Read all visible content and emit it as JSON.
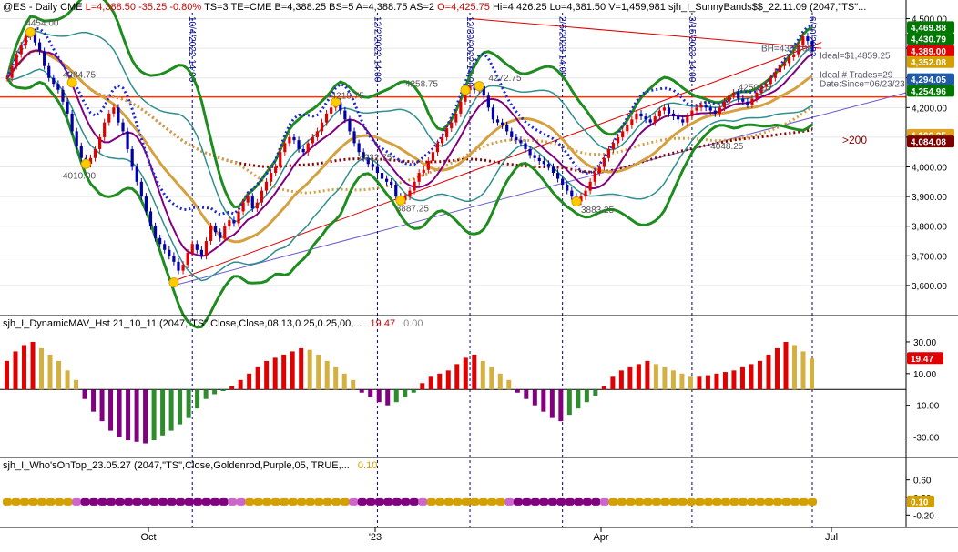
{
  "header": {
    "symbol": "@ES - Daily  CME",
    "last": "L=4,388.50",
    "change": "-35.25",
    "pct": "-0.80%",
    "ts": "TS=3  TE=CME  B=4,388.25  BS=5  A=4,388.75  AS=2",
    "open": "O=4,425.75",
    "hilo": "Hi=4,426.25  Lo=4,381.50  V=1,459,981  sjh_I_SunnyBands$$_22.11.09 (2047,\"TS\"..."
  },
  "indicator1": {
    "label": "sjh_I_DynamicMAV_Hst 21_10_11 (2047,\"TS\",Close,Close,08,13,0.25,0.25,00,...",
    "v1": "19.47",
    "v2": "0.00"
  },
  "indicator2": {
    "label": "sjh_I_Who'sOnTop_23.05.27 (2047,\"TS\",Close,Goldenrod,Purple,05,  TRUE,...",
    "v1": "0.10"
  },
  "colors": {
    "bull": "#e00000",
    "bear": "#0000aa",
    "band": "#007700",
    "mav_pos_red": "#e00000",
    "mav_pos_gold": "#d4b040",
    "mav_neg_purple": "#800080",
    "mav_neg_green": "#2e8b2e",
    "hline": "#ff3300"
  },
  "chart_data": [
    {
      "type": "candlestick",
      "title": "",
      "ylim": [
        3520,
        4520
      ],
      "y_ticks": [
        "4,500.00",
        "4,400.00",
        "4,300.00",
        "4,200.00",
        "4,100.00",
        "4,000.00",
        "3,900.00",
        "3,800.00",
        "3,700.00",
        "3,600.00"
      ],
      "x_ticks": [
        "Oct",
        "'23",
        "Apr",
        "Jul"
      ],
      "price_tags": [
        {
          "label": "4,469.88",
          "bg": "#007700",
          "y": 4469.88
        },
        {
          "label": "4,430.79",
          "bg": "#007700",
          "y": 4430.79
        },
        {
          "label": "4,389.00",
          "bg": "#e00000",
          "y": 4389.0
        },
        {
          "label": "4,352.08",
          "bg": "#d4a000",
          "y": 4352.08
        },
        {
          "label": "4,294.05",
          "bg": "#1e5aa8",
          "y": 4294.05
        },
        {
          "label": "4,254.96",
          "bg": "#007700",
          "y": 4254.96
        },
        {
          "label": "4,106.25",
          "bg": "#e0a020",
          "y": 4106.25
        },
        {
          "label": "4,084.08",
          "bg": "#7a0000",
          "y": 4084.08
        }
      ],
      "annotations": [
        "4454.00",
        "4284.75",
        "4010.00",
        "4218.75",
        "4258.75",
        "4032.75",
        "3887.25",
        "4272.75",
        "3883.25",
        "4250.25",
        "4048.25",
        ">200",
        "BH=4389.00",
        "Ideal=$1,4859.25",
        "Ideal # Trades=29",
        "Date:Since=06/23/23"
      ],
      "vline_labels": [
        "10/4/2022 14:00",
        "12/2/2022 14:00",
        "12/30/2022 14:00",
        "2/6/2023 14:00",
        "3/15/2023 14:00",
        "6/20/2023"
      ],
      "horizontal_line": 4236,
      "closes": [
        4300,
        4340,
        4380,
        4410,
        4440,
        4454,
        4420,
        4390,
        4340,
        4300,
        4280,
        4260,
        4220,
        4180,
        4120,
        4070,
        4030,
        4010,
        4030,
        4060,
        4100,
        4150,
        4180,
        4200,
        4150,
        4120,
        4060,
        4000,
        3950,
        3900,
        3850,
        3800,
        3760,
        3740,
        3720,
        3700,
        3680,
        3650,
        3670,
        3710,
        3740,
        3720,
        3700,
        3750,
        3800,
        3780,
        3760,
        3800,
        3820,
        3810,
        3850,
        3880,
        3900,
        3860,
        3880,
        3920,
        3950,
        3980,
        4000,
        4050,
        4080,
        4100,
        4090,
        4060,
        4050,
        4080,
        4100,
        4120,
        4150,
        4180,
        4200,
        4218,
        4190,
        4160,
        4120,
        4080,
        4050,
        4030,
        4010,
        4000,
        3980,
        3960,
        3950,
        3940,
        3900,
        3887,
        3900,
        3920,
        3950,
        3980,
        3990,
        4020,
        4050,
        4080,
        4100,
        4130,
        4150,
        4180,
        4220,
        4258,
        4270,
        4260,
        4272,
        4240,
        4200,
        4160,
        4150,
        4140,
        4120,
        4100,
        4090,
        4080,
        4060,
        4040,
        4030,
        4020,
        4010,
        4000,
        3980,
        3960,
        3940,
        3920,
        3900,
        3883,
        3900,
        3920,
        3950,
        3980,
        4000,
        4030,
        4060,
        4080,
        4100,
        4120,
        4140,
        4160,
        4180,
        4170,
        4160,
        4150,
        4170,
        4190,
        4200,
        4180,
        4170,
        4160,
        4150,
        4170,
        4190,
        4200,
        4210,
        4200,
        4190,
        4180,
        4200,
        4220,
        4240,
        4250,
        4230,
        4220,
        4210,
        4230,
        4250,
        4270,
        4280,
        4300,
        4320,
        4340,
        4350,
        4370,
        4380,
        4410,
        4440,
        4425,
        4389
      ]
    },
    {
      "type": "bar",
      "title": "",
      "ylim": [
        -40,
        38
      ],
      "y_ticks": [
        "30.00",
        "10.00",
        "-10.00",
        "-30.00"
      ],
      "last_value": 19.47,
      "values": [
        18,
        24,
        28,
        30,
        26,
        22,
        18,
        12,
        6,
        -6,
        -14,
        -20,
        -26,
        -30,
        -32,
        -33,
        -34,
        -32,
        -29,
        -26,
        -22,
        -18,
        -12,
        -6,
        -3,
        -1,
        2,
        6,
        10,
        14,
        18,
        20,
        22,
        24,
        26,
        25,
        22,
        18,
        14,
        10,
        6,
        -2,
        -5,
        -8,
        -10,
        -8,
        -5,
        -2,
        4,
        8,
        10,
        12,
        16,
        20,
        22,
        18,
        14,
        10,
        6,
        -2,
        -6,
        -10,
        -14,
        -18,
        -20,
        -16,
        -12,
        -8,
        -4,
        2,
        8,
        12,
        14,
        16,
        18,
        16,
        14,
        12,
        10,
        8,
        8,
        9,
        10,
        11,
        12,
        14,
        16,
        18,
        22,
        26,
        30,
        28,
        24,
        19.47
      ]
    },
    {
      "type": "area",
      "title": "",
      "ylim": [
        -0.4,
        0.8
      ],
      "y_ticks": [
        "0.60",
        "0.20",
        "-0.20"
      ],
      "last_value": 0.1
    }
  ]
}
